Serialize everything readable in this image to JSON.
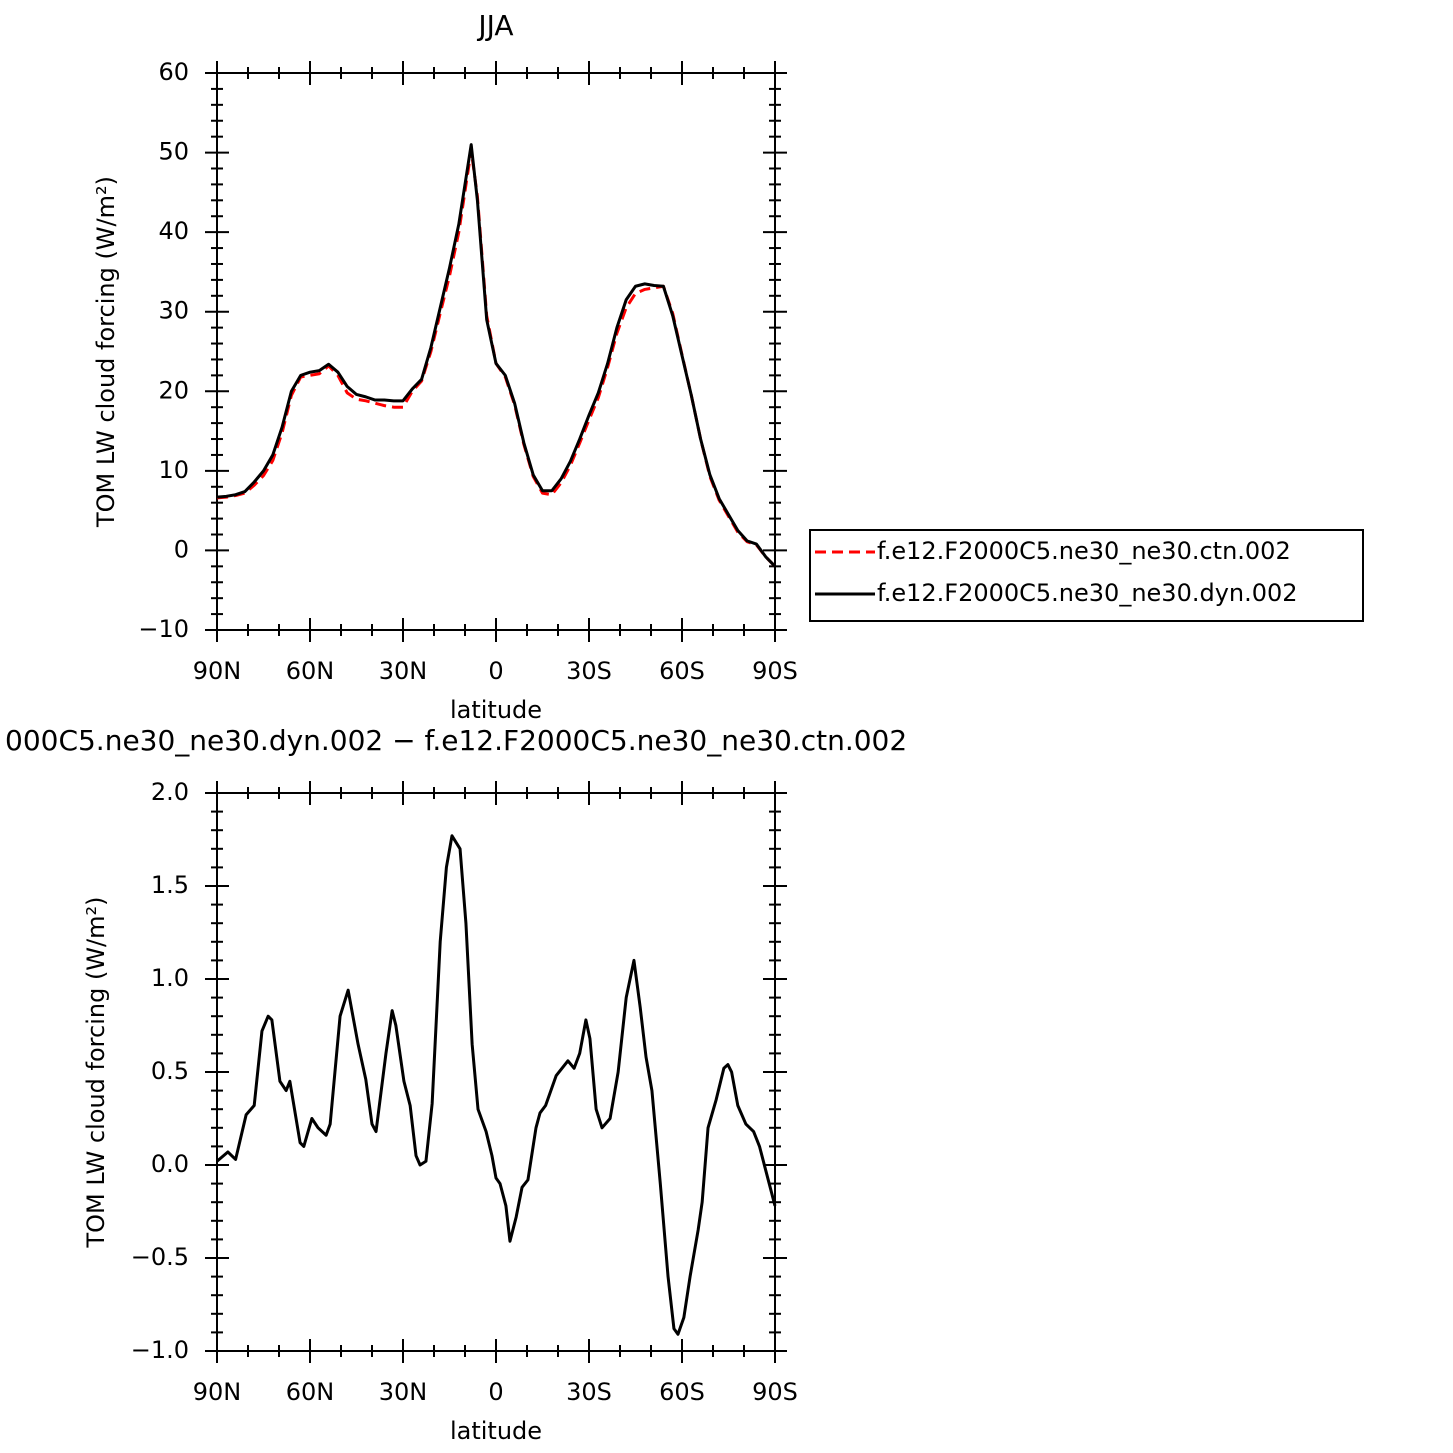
{
  "chart_data": [
    {
      "type": "line",
      "title": "JJA",
      "xlabel": "latitude",
      "ylabel": "TOM LW cloud forcing (W/m²)",
      "x": [
        90,
        87,
        84,
        81,
        78,
        75,
        72,
        69,
        66,
        63,
        60,
        57,
        54,
        51,
        48,
        45,
        42,
        39,
        36,
        33,
        30,
        27,
        24,
        21,
        18,
        15,
        12,
        8,
        6,
        3,
        0,
        -3,
        -6,
        -9,
        -12,
        -15,
        -18,
        -21,
        -24,
        -27,
        -30,
        -33,
        -36,
        -39,
        -42,
        -45,
        -48,
        -51,
        -54,
        -57,
        -60,
        -63,
        -66,
        -69,
        -72,
        -75,
        -78,
        -81,
        -84,
        -87,
        -90
      ],
      "series": [
        {
          "name": "f.e12.F2000C5.ne30_ne30.ctn.002",
          "color": "#ff0000",
          "dash": "dashed",
          "values": [
            6.6,
            6.7,
            6.9,
            7.2,
            8.2,
            9.4,
            11.3,
            14.8,
            19.5,
            21.8,
            22.0,
            22.2,
            23.2,
            22.0,
            19.8,
            19.0,
            18.8,
            18.5,
            18.2,
            18.0,
            18.0,
            20.0,
            21.3,
            25.0,
            29.8,
            34.5,
            40.0,
            50.3,
            44.5,
            29.5,
            23.5,
            21.8,
            18.3,
            13.3,
            9.3,
            7.2,
            7.0,
            8.5,
            10.7,
            13.5,
            16.4,
            19.2,
            23.0,
            27.3,
            30.5,
            32.3,
            32.8,
            33.0,
            33.2,
            29.8,
            24.6,
            19.5,
            14.0,
            9.3,
            6.3,
            4.3,
            2.3,
            1.1,
            0.7,
            -0.8,
            -2.0
          ]
        },
        {
          "name": "f.e12.F2000C5.ne30_ne30.dyn.002",
          "color": "#000000",
          "dash": "solid",
          "values": [
            6.7,
            6.8,
            7.0,
            7.4,
            8.6,
            10.0,
            12.0,
            15.5,
            20.0,
            22.0,
            22.4,
            22.6,
            23.4,
            22.4,
            20.6,
            19.6,
            19.3,
            18.9,
            18.9,
            18.8,
            18.8,
            20.3,
            21.5,
            25.5,
            30.5,
            35.5,
            41.0,
            51.0,
            44.0,
            29.0,
            23.5,
            22.0,
            18.5,
            13.5,
            9.5,
            7.5,
            7.5,
            9.0,
            11.2,
            14.0,
            17.0,
            19.8,
            23.5,
            28.0,
            31.5,
            33.2,
            33.5,
            33.3,
            33.2,
            29.5,
            24.5,
            19.5,
            14.0,
            9.5,
            6.5,
            4.5,
            2.5,
            1.2,
            0.8,
            -0.8,
            -2.0
          ]
        }
      ],
      "xlim": [
        90,
        -90
      ],
      "xticks": [
        {
          "value": 90,
          "label": "90N"
        },
        {
          "value": 60,
          "label": "60N"
        },
        {
          "value": 30,
          "label": "30N"
        },
        0,
        {
          "value": -30,
          "label": "30S"
        },
        {
          "value": -60,
          "label": "60S"
        },
        {
          "value": -90,
          "label": "90S"
        }
      ],
      "ylim": [
        -10,
        60
      ],
      "yticks": [
        {
          "value": -10,
          "label": "−10"
        },
        0,
        10,
        20,
        30,
        40,
        50,
        60
      ],
      "legend": "right"
    },
    {
      "type": "line",
      "title": "000C5.ne30_ne30.dyn.002 − f.e12.F2000C5.ne30_ne30.ctn.002",
      "xlabel": "latitude",
      "ylabel": "TOM LW cloud forcing (W/m²)",
      "x": [
        90,
        86.5,
        84,
        80.6,
        78,
        75.5,
        73.5,
        72.3,
        69.7,
        67.7,
        66.5,
        63.2,
        62,
        59.4,
        57.4,
        54.8,
        53.5,
        50.3,
        47.7,
        44.5,
        42,
        40,
        38.7,
        35.5,
        33.5,
        32.3,
        29.7,
        27.7,
        25.8,
        24.5,
        22.6,
        20.6,
        18,
        16,
        14.2,
        11.6,
        9.7,
        7.7,
        5.8,
        3.2,
        1.3,
        0,
        -1.3,
        -3.2,
        -4.5,
        -6.5,
        -8.4,
        -10.3,
        -12.9,
        -14.2,
        -16,
        -19.4,
        -23.2,
        -25.2,
        -27,
        -29,
        -30.3,
        -32.3,
        -34.2,
        -36.8,
        -39.4,
        -42,
        -44.5,
        -46.5,
        -48.4,
        -50.3,
        -53,
        -55.5,
        -57.4,
        -58.7,
        -60.6,
        -62.6,
        -65.2,
        -66.5,
        -68.4,
        -71,
        -73.5,
        -74.8,
        -76,
        -78,
        -80.6,
        -83.1,
        -85,
        -90
      ],
      "values": [
        0.02,
        0.07,
        0.03,
        0.27,
        0.32,
        0.72,
        0.8,
        0.78,
        0.45,
        0.4,
        0.45,
        0.12,
        0.1,
        0.25,
        0.2,
        0.16,
        0.22,
        0.8,
        0.94,
        0.65,
        0.46,
        0.22,
        0.18,
        0.6,
        0.83,
        0.75,
        0.45,
        0.32,
        0.05,
        0.0,
        0.02,
        0.33,
        1.2,
        1.6,
        1.77,
        1.7,
        1.3,
        0.65,
        0.3,
        0.18,
        0.05,
        -0.07,
        -0.1,
        -0.22,
        -0.41,
        -0.28,
        -0.12,
        -0.08,
        0.2,
        0.28,
        0.32,
        0.48,
        0.56,
        0.52,
        0.6,
        0.78,
        0.68,
        0.3,
        0.2,
        0.25,
        0.5,
        0.9,
        1.1,
        0.85,
        0.58,
        0.4,
        -0.1,
        -0.6,
        -0.88,
        -0.91,
        -0.82,
        -0.6,
        -0.35,
        -0.2,
        0.2,
        0.35,
        0.52,
        0.54,
        0.5,
        0.32,
        0.22,
        0.18,
        0.1,
        -0.22
      ],
      "color": "#000000",
      "xlim": [
        90,
        -90
      ],
      "xticks": [
        {
          "value": 90,
          "label": "90N"
        },
        {
          "value": 60,
          "label": "60N"
        },
        {
          "value": 30,
          "label": "30N"
        },
        0,
        {
          "value": -30,
          "label": "30S"
        },
        {
          "value": -60,
          "label": "60S"
        },
        {
          "value": -90,
          "label": "90S"
        }
      ],
      "ylim": [
        -1,
        2
      ],
      "yticks": [
        {
          "value": -1,
          "label": "−1.0"
        },
        {
          "value": -0.5,
          "label": "−0.5"
        },
        {
          "value": 0,
          "label": "0.0"
        },
        0.5,
        {
          "value": 1,
          "label": "1.0"
        },
        1.5,
        {
          "value": 2,
          "label": "2.0"
        }
      ]
    }
  ]
}
